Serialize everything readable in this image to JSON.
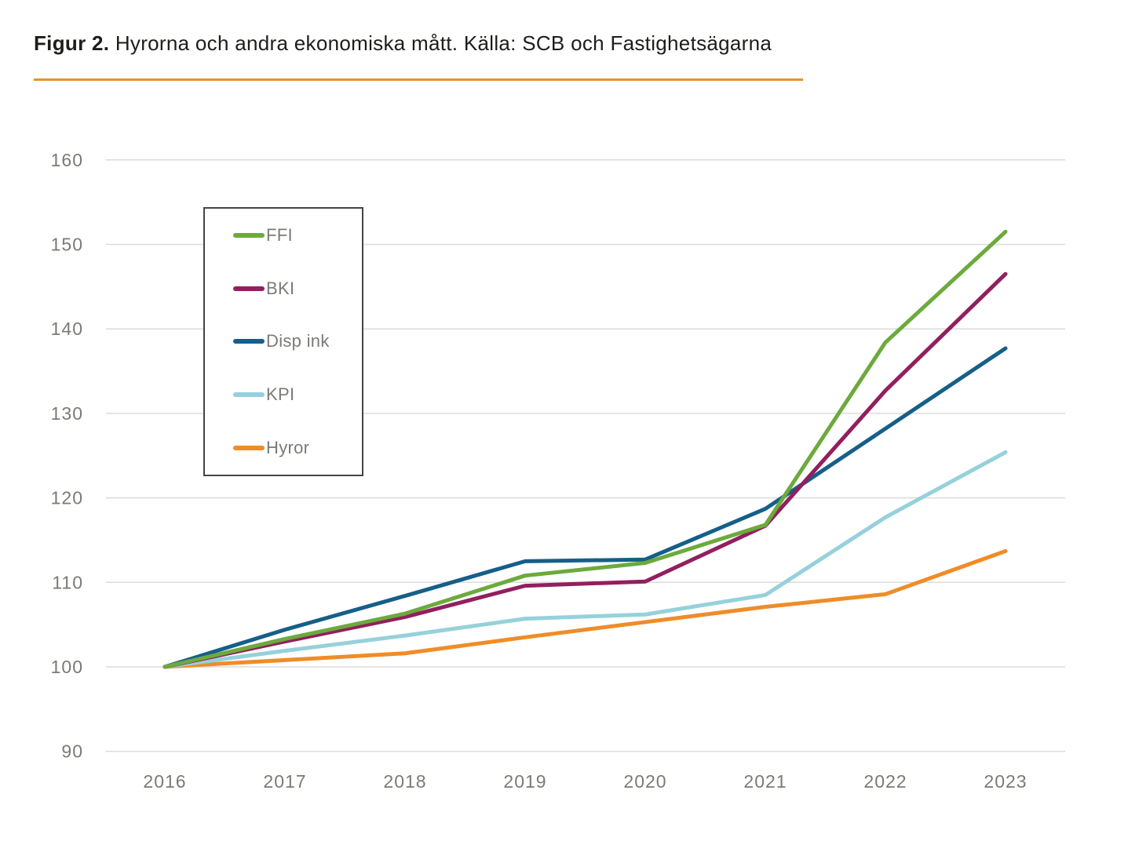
{
  "page": {
    "title_prefix": "Figur 2.",
    "title_rest": " Hyrorna och andra ekonomiska mått. Källa: SCB och Fastighetsägarna",
    "accent_color": "#e8922e"
  },
  "chart_data": {
    "type": "line",
    "title": "Figur 2. Hyrorna och andra ekonomiska mått. Källa: SCB och Fastighetsägarna",
    "x": [
      2016,
      2017,
      2018,
      2019,
      2020,
      2021,
      2022,
      2023
    ],
    "series": [
      {
        "name": "FFI",
        "color": "#6caa3c",
        "values": [
          100,
          103.3,
          106.3,
          110.8,
          112.3,
          116.8,
          138.4,
          151.5
        ]
      },
      {
        "name": "BKI",
        "color": "#921f5e",
        "values": [
          100,
          103.0,
          105.9,
          109.6,
          110.1,
          116.7,
          132.7,
          146.5
        ]
      },
      {
        "name": "Disp ink",
        "color": "#155f88",
        "values": [
          100,
          104.4,
          108.4,
          112.5,
          112.7,
          118.7,
          128.2,
          137.7
        ]
      },
      {
        "name": "KPI",
        "color": "#96d1db",
        "values": [
          100,
          101.9,
          103.7,
          105.7,
          106.2,
          108.5,
          117.7,
          125.4
        ]
      },
      {
        "name": "Hyror",
        "color": "#f08c28",
        "values": [
          100,
          100.8,
          101.6,
          103.5,
          105.3,
          107.1,
          108.6,
          113.7
        ]
      }
    ],
    "xlabel": "",
    "ylabel": "",
    "ylim": [
      90,
      160
    ],
    "yticks": [
      90,
      100,
      110,
      120,
      130,
      140,
      150,
      160
    ],
    "grid": "horizontal",
    "gridline_color": "#dbdbd9",
    "tick_label_color": "#7c7a75",
    "legend_position": "upper-left-inside",
    "legend_entries": [
      "FFI",
      "BKI",
      "Disp ink",
      "KPI",
      "Hyror"
    ]
  }
}
